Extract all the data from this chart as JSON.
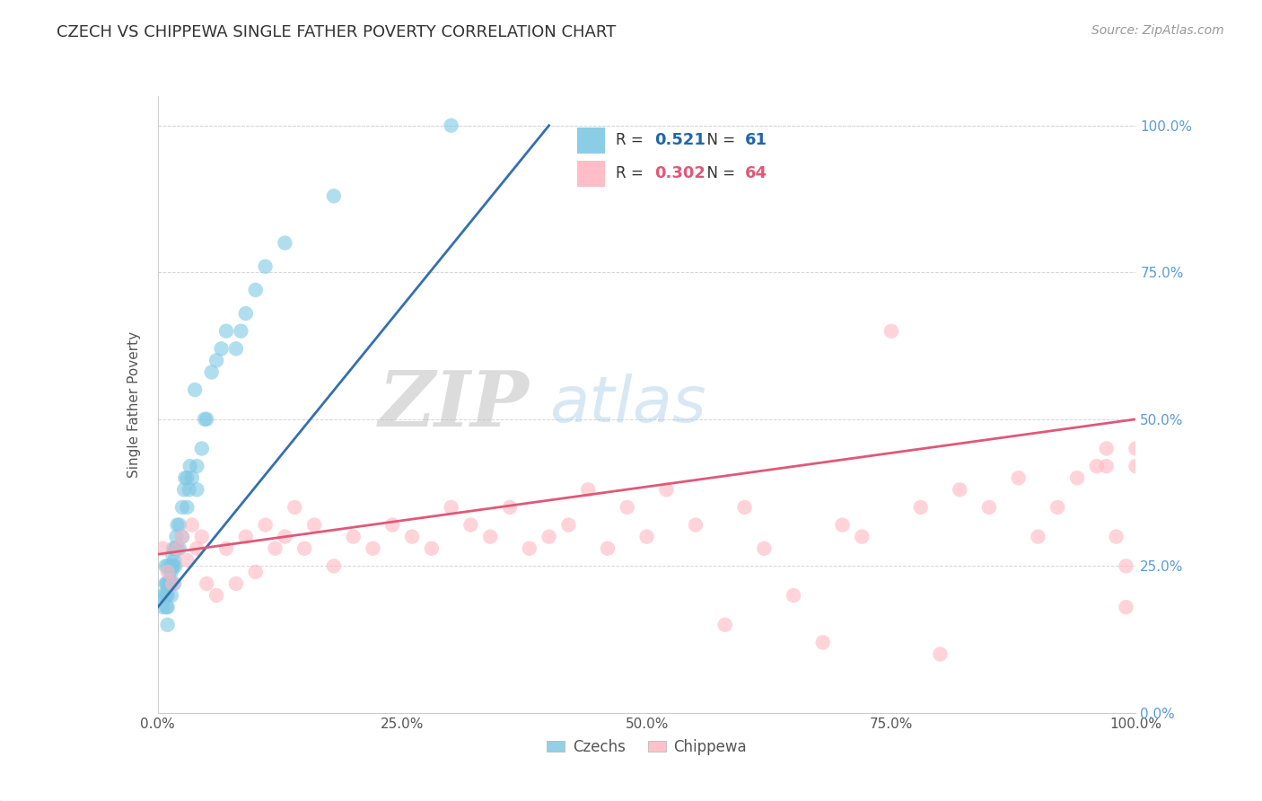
{
  "title": "CZECH VS CHIPPEWA SINGLE FATHER POVERTY CORRELATION CHART",
  "source": "Source: ZipAtlas.com",
  "ylabel": "Single Father Poverty",
  "czech_color": "#7ec8e3",
  "chippewa_color": "#ffb6c1",
  "czech_R": 0.521,
  "czech_N": 61,
  "chippewa_R": 0.302,
  "chippewa_N": 64,
  "czech_line_color": "#3470b0",
  "chippewa_line_color": "#e05878",
  "legend_R_color": "#2166ac",
  "legend_N_color": "#e05c1a",
  "ytick_labels": [
    "0.0%",
    "25.0%",
    "50.0%",
    "75.0%",
    "100.0%"
  ],
  "ytick_values": [
    0.0,
    0.25,
    0.5,
    0.75,
    1.0
  ],
  "xtick_labels": [
    "0.0%",
    "25.0%",
    "50.0%",
    "75.0%",
    "100.0%"
  ],
  "xtick_values": [
    0.0,
    0.25,
    0.5,
    0.75,
    1.0
  ],
  "czech_x": [
    0.005,
    0.005,
    0.007,
    0.008,
    0.008,
    0.009,
    0.009,
    0.009,
    0.01,
    0.01,
    0.01,
    0.01,
    0.01,
    0.012,
    0.012,
    0.013,
    0.013,
    0.014,
    0.014,
    0.015,
    0.015,
    0.015,
    0.016,
    0.016,
    0.017,
    0.017,
    0.018,
    0.018,
    0.019,
    0.019,
    0.02,
    0.02,
    0.022,
    0.022,
    0.025,
    0.025,
    0.027,
    0.028,
    0.03,
    0.03,
    0.032,
    0.033,
    0.035,
    0.038,
    0.04,
    0.04,
    0.045,
    0.048,
    0.05,
    0.055,
    0.06,
    0.065,
    0.07,
    0.08,
    0.085,
    0.09,
    0.1,
    0.11,
    0.13,
    0.18,
    0.3
  ],
  "czech_y": [
    0.18,
    0.2,
    0.2,
    0.22,
    0.25,
    0.18,
    0.2,
    0.22,
    0.15,
    0.18,
    0.2,
    0.22,
    0.25,
    0.22,
    0.24,
    0.22,
    0.25,
    0.2,
    0.24,
    0.22,
    0.25,
    0.27,
    0.25,
    0.28,
    0.22,
    0.26,
    0.25,
    0.28,
    0.28,
    0.3,
    0.28,
    0.32,
    0.28,
    0.32,
    0.3,
    0.35,
    0.38,
    0.4,
    0.35,
    0.4,
    0.38,
    0.42,
    0.4,
    0.55,
    0.38,
    0.42,
    0.45,
    0.5,
    0.5,
    0.58,
    0.6,
    0.62,
    0.65,
    0.62,
    0.65,
    0.68,
    0.72,
    0.76,
    0.8,
    0.88,
    1.0
  ],
  "chippewa_x": [
    0.005,
    0.01,
    0.015,
    0.02,
    0.025,
    0.03,
    0.035,
    0.04,
    0.045,
    0.05,
    0.06,
    0.07,
    0.08,
    0.09,
    0.1,
    0.11,
    0.12,
    0.13,
    0.14,
    0.15,
    0.16,
    0.18,
    0.2,
    0.22,
    0.24,
    0.26,
    0.28,
    0.3,
    0.32,
    0.34,
    0.36,
    0.38,
    0.4,
    0.42,
    0.44,
    0.46,
    0.48,
    0.5,
    0.52,
    0.55,
    0.58,
    0.6,
    0.62,
    0.65,
    0.68,
    0.7,
    0.72,
    0.75,
    0.78,
    0.8,
    0.82,
    0.85,
    0.88,
    0.9,
    0.92,
    0.94,
    0.96,
    0.97,
    0.97,
    0.98,
    0.99,
    0.99,
    1.0,
    1.0
  ],
  "chippewa_y": [
    0.28,
    0.24,
    0.22,
    0.28,
    0.3,
    0.26,
    0.32,
    0.28,
    0.3,
    0.22,
    0.2,
    0.28,
    0.22,
    0.3,
    0.24,
    0.32,
    0.28,
    0.3,
    0.35,
    0.28,
    0.32,
    0.25,
    0.3,
    0.28,
    0.32,
    0.3,
    0.28,
    0.35,
    0.32,
    0.3,
    0.35,
    0.28,
    0.3,
    0.32,
    0.38,
    0.28,
    0.35,
    0.3,
    0.38,
    0.32,
    0.15,
    0.35,
    0.28,
    0.2,
    0.12,
    0.32,
    0.3,
    0.65,
    0.35,
    0.1,
    0.38,
    0.35,
    0.4,
    0.3,
    0.35,
    0.4,
    0.42,
    0.45,
    0.42,
    0.3,
    0.18,
    0.25,
    0.42,
    0.45
  ],
  "czech_line_x": [
    0.0,
    0.4
  ],
  "czech_line_y": [
    0.18,
    1.0
  ],
  "chippewa_line_x": [
    0.0,
    1.0
  ],
  "chippewa_line_y": [
    0.27,
    0.5
  ]
}
